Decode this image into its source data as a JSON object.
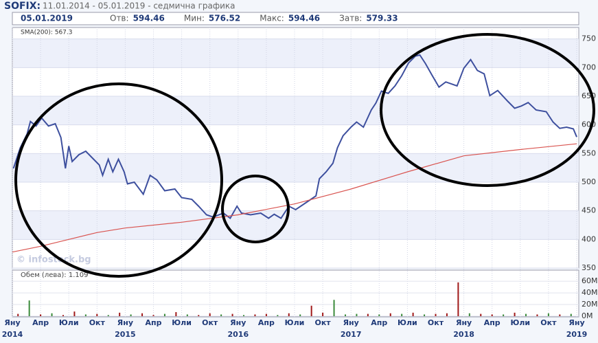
{
  "header": {
    "title": "SOFIX:",
    "subtitle": "11.01.2014 - 05.01.2019 - седмична графика"
  },
  "quote": {
    "date": "05.01.2019",
    "stats": [
      {
        "label": "Отв:",
        "value": 594.46
      },
      {
        "label": "Мин:",
        "value": 576.52
      },
      {
        "label": "Макс:",
        "value": 594.46
      },
      {
        "label": "Затв:",
        "value": 579.33
      }
    ]
  },
  "chart_data": {
    "type": "line",
    "watermark": "© infostock.bg",
    "x": [
      2014.01,
      2014.07,
      2014.13,
      2014.16,
      2014.21,
      2014.26,
      2014.32,
      2014.38,
      2014.43,
      2014.47,
      2014.5,
      2014.53,
      2014.59,
      2014.65,
      2014.71,
      2014.77,
      2014.8,
      2014.85,
      2014.89,
      2014.94,
      2014.99,
      2015.02,
      2015.08,
      2015.16,
      2015.22,
      2015.28,
      2015.35,
      2015.44,
      2015.5,
      2015.59,
      2015.65,
      2015.72,
      2015.78,
      2015.87,
      2015.93,
      2015.99,
      2016.03,
      2016.11,
      2016.2,
      2016.27,
      2016.32,
      2016.38,
      2016.45,
      2016.51,
      2016.6,
      2016.69,
      2016.72,
      2016.78,
      2016.84,
      2016.88,
      2016.93,
      2017.0,
      2017.05,
      2017.11,
      2017.18,
      2017.22,
      2017.27,
      2017.33,
      2017.39,
      2017.45,
      2017.51,
      2017.57,
      2017.61,
      2017.66,
      2017.72,
      2017.78,
      2017.84,
      2017.94,
      2018.0,
      2018.06,
      2018.12,
      2018.18,
      2018.23,
      2018.3,
      2018.39,
      2018.45,
      2018.51,
      2018.57,
      2018.64,
      2018.73,
      2018.79,
      2018.85,
      2018.91,
      2018.97,
      2019.0
    ],
    "series": [
      {
        "color": "#3d4f9e",
        "values": [
          524,
          560,
          584,
          606,
          598,
          612,
          598,
          602,
          578,
          524,
          563,
          536,
          548,
          554,
          542,
          530,
          512,
          540,
          518,
          540,
          518,
          497,
          500,
          479,
          512,
          504,
          485,
          488,
          473,
          470,
          458,
          443,
          439,
          446,
          437,
          458,
          446,
          443,
          446,
          437,
          444,
          437,
          458,
          452,
          464,
          476,
          506,
          518,
          533,
          560,
          581,
          596,
          605,
          596,
          626,
          638,
          659,
          655,
          668,
          686,
          708,
          720,
          722,
          707,
          686,
          666,
          675,
          668,
          699,
          714,
          695,
          689,
          651,
          660,
          641,
          629,
          633,
          639,
          626,
          623,
          605,
          594,
          596,
          593,
          579
        ]
      },
      {
        "name": "SMA(200): 567.3",
        "color": "#d9534f",
        "x": [
          2014.0,
          2014.25,
          2014.5,
          2014.75,
          2015.0,
          2015.5,
          2016.0,
          2016.5,
          2017.0,
          2017.5,
          2018.0,
          2018.5,
          2019.0
        ],
        "values": [
          378,
          388,
          400,
          412,
          420,
          430,
          443,
          462,
          488,
          518,
          546,
          557,
          567
        ]
      }
    ],
    "xlim": [
      2014.0,
      2019.0
    ],
    "ylim": [
      350,
      770
    ],
    "yticks": [
      350,
      400,
      450,
      500,
      550,
      600,
      650,
      700,
      750
    ],
    "xticks": [
      {
        "value": 2014.0,
        "label": "Яну"
      },
      {
        "value": 2014.25,
        "label": "Апр"
      },
      {
        "value": 2014.5,
        "label": "Юли"
      },
      {
        "value": 2014.75,
        "label": "Окт"
      },
      {
        "value": 2015.0,
        "label": "Яну"
      },
      {
        "value": 2015.25,
        "label": "Апр"
      },
      {
        "value": 2015.5,
        "label": "Юли"
      },
      {
        "value": 2015.75,
        "label": "Окт"
      },
      {
        "value": 2016.0,
        "label": "Яну"
      },
      {
        "value": 2016.25,
        "label": "Апр"
      },
      {
        "value": 2016.5,
        "label": "Юли"
      },
      {
        "value": 2016.75,
        "label": "Окт"
      },
      {
        "value": 2017.0,
        "label": "Яну"
      },
      {
        "value": 2017.25,
        "label": "Апр"
      },
      {
        "value": 2017.5,
        "label": "Юли"
      },
      {
        "value": 2017.75,
        "label": "Окт"
      },
      {
        "value": 2018.0,
        "label": "Яну"
      },
      {
        "value": 2018.25,
        "label": "Апр"
      },
      {
        "value": 2018.5,
        "label": "Юли"
      },
      {
        "value": 2018.75,
        "label": "Окт"
      },
      {
        "value": 2019.0,
        "label": "Яну"
      }
    ],
    "year_ticks": [
      {
        "value": 2014.0,
        "label": "2014"
      },
      {
        "value": 2015.0,
        "label": "2015"
      },
      {
        "value": 2016.0,
        "label": "2016"
      },
      {
        "value": 2017.0,
        "label": "2017"
      },
      {
        "value": 2018.0,
        "label": "2018"
      },
      {
        "value": 2019.0,
        "label": "2019"
      }
    ],
    "grid": true,
    "volume": {
      "type": "bar",
      "label": "Обем (лева): 1.109",
      "x": [
        2014.05,
        2014.15,
        2014.25,
        2014.35,
        2014.45,
        2014.55,
        2014.65,
        2014.75,
        2014.85,
        2014.95,
        2015.05,
        2015.15,
        2015.25,
        2015.35,
        2015.45,
        2015.55,
        2015.65,
        2015.75,
        2015.85,
        2015.95,
        2016.05,
        2016.15,
        2016.25,
        2016.35,
        2016.45,
        2016.55,
        2016.65,
        2016.75,
        2016.85,
        2016.95,
        2017.05,
        2017.15,
        2017.25,
        2017.35,
        2017.45,
        2017.55,
        2017.65,
        2017.75,
        2017.85,
        2017.95,
        2018.05,
        2018.15,
        2018.25,
        2018.35,
        2018.45,
        2018.55,
        2018.65,
        2018.75,
        2018.85,
        2018.95
      ],
      "values": [
        4,
        27,
        3,
        5,
        2,
        8,
        3,
        4,
        2,
        6,
        3,
        5,
        2,
        4,
        7,
        3,
        2,
        5,
        3,
        4,
        2,
        3,
        4,
        2,
        5,
        3,
        18,
        6,
        28,
        3,
        4,
        4,
        3,
        5,
        4,
        6,
        3,
        4,
        5,
        58,
        5,
        4,
        3,
        3,
        6,
        4,
        3,
        5,
        3,
        4
      ],
      "colors": [
        "#a01818",
        "#3a8a3a",
        "#a01818",
        "#3a8a3a",
        "#a01818",
        "#a01818",
        "#3a8a3a",
        "#a01818",
        "#3a8a3a",
        "#a01818",
        "#3a8a3a",
        "#a01818",
        "#a01818",
        "#3a8a3a",
        "#a01818",
        "#3a8a3a",
        "#a01818",
        "#a01818",
        "#3a8a3a",
        "#a01818",
        "#3a8a3a",
        "#a01818",
        "#a01818",
        "#3a8a3a",
        "#a01818",
        "#3a8a3a",
        "#a01818",
        "#a01818",
        "#3a8a3a",
        "#3a8a3a",
        "#3a8a3a",
        "#a01818",
        "#3a8a3a",
        "#a01818",
        "#3a8a3a",
        "#a01818",
        "#3a8a3a",
        "#a01818",
        "#a01818",
        "#a01818",
        "#3a8a3a",
        "#a01818",
        "#a01818",
        "#3a8a3a",
        "#a01818",
        "#3a8a3a",
        "#a01818",
        "#3a8a3a",
        "#a01818",
        "#3a8a3a"
      ],
      "ylim": [
        0,
        79
      ],
      "yticks": [
        {
          "value": 0,
          "label": "0M"
        },
        {
          "value": 20,
          "label": "20M"
        },
        {
          "value": 40,
          "label": "40M"
        },
        {
          "value": 60,
          "label": "60M"
        }
      ]
    }
  }
}
